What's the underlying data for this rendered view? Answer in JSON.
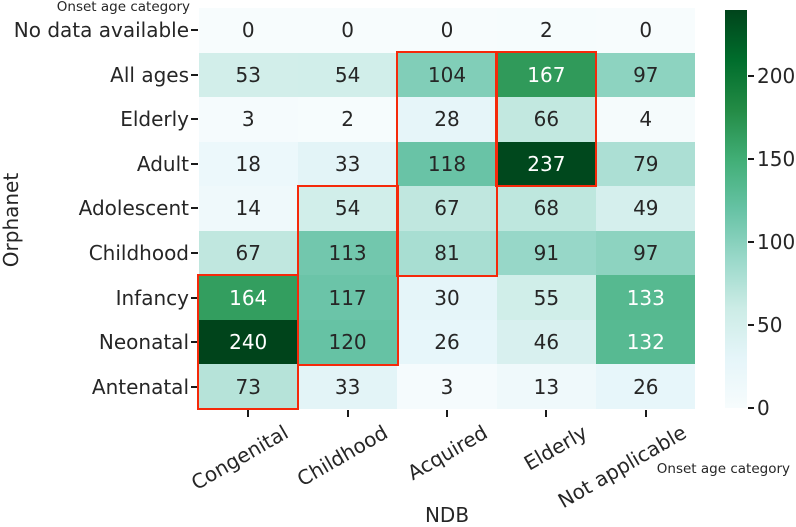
{
  "chart_data": {
    "type": "heatmap",
    "colormap": "BuGn",
    "vmin": 0,
    "vmax": 240,
    "xlabel": "NDB",
    "ylabel": "Orphanet",
    "x_axis_note": "Onset age category",
    "y_axis_note": "Onset age category",
    "columns": [
      "Congenital",
      "Childhood",
      "Acquired",
      "Elderly",
      "Not applicable"
    ],
    "rows": [
      "No data available",
      "All ages",
      "Elderly",
      "Adult",
      "Adolescent",
      "Childhood",
      "Infancy",
      "Neonatal",
      "Antenatal"
    ],
    "values": [
      [
        0,
        0,
        0,
        2,
        0
      ],
      [
        53,
        54,
        104,
        167,
        97
      ],
      [
        3,
        2,
        28,
        66,
        4
      ],
      [
        18,
        33,
        118,
        237,
        79
      ],
      [
        14,
        54,
        67,
        68,
        49
      ],
      [
        67,
        113,
        81,
        91,
        97
      ],
      [
        164,
        117,
        30,
        55,
        133
      ],
      [
        240,
        120,
        26,
        46,
        132
      ],
      [
        73,
        33,
        3,
        13,
        26
      ]
    ],
    "colorbar_ticks": [
      0,
      50,
      100,
      150,
      200
    ],
    "legend_position": "right",
    "highlight_boxes": [
      {
        "column": "Congenital",
        "col_index": 0,
        "row_start_index": 6,
        "row_end_index": 8
      },
      {
        "column": "Childhood",
        "col_index": 1,
        "row_start_index": 4,
        "row_end_index": 7
      },
      {
        "column": "Acquired",
        "col_index": 2,
        "row_start_index": 1,
        "row_end_index": 5
      },
      {
        "column": "Elderly",
        "col_index": 3,
        "row_start_index": 1,
        "row_end_index": 3
      }
    ]
  },
  "colors": {
    "highlight_box": "#f5290a",
    "annotation_dark": "#262626",
    "annotation_light": "#ffffff",
    "bugn_stops": [
      "#f7fcfd",
      "#e5f5f9",
      "#ccece6",
      "#99d8c9",
      "#66c2a4",
      "#41ae76",
      "#238b45",
      "#006d2c",
      "#00441b"
    ]
  }
}
